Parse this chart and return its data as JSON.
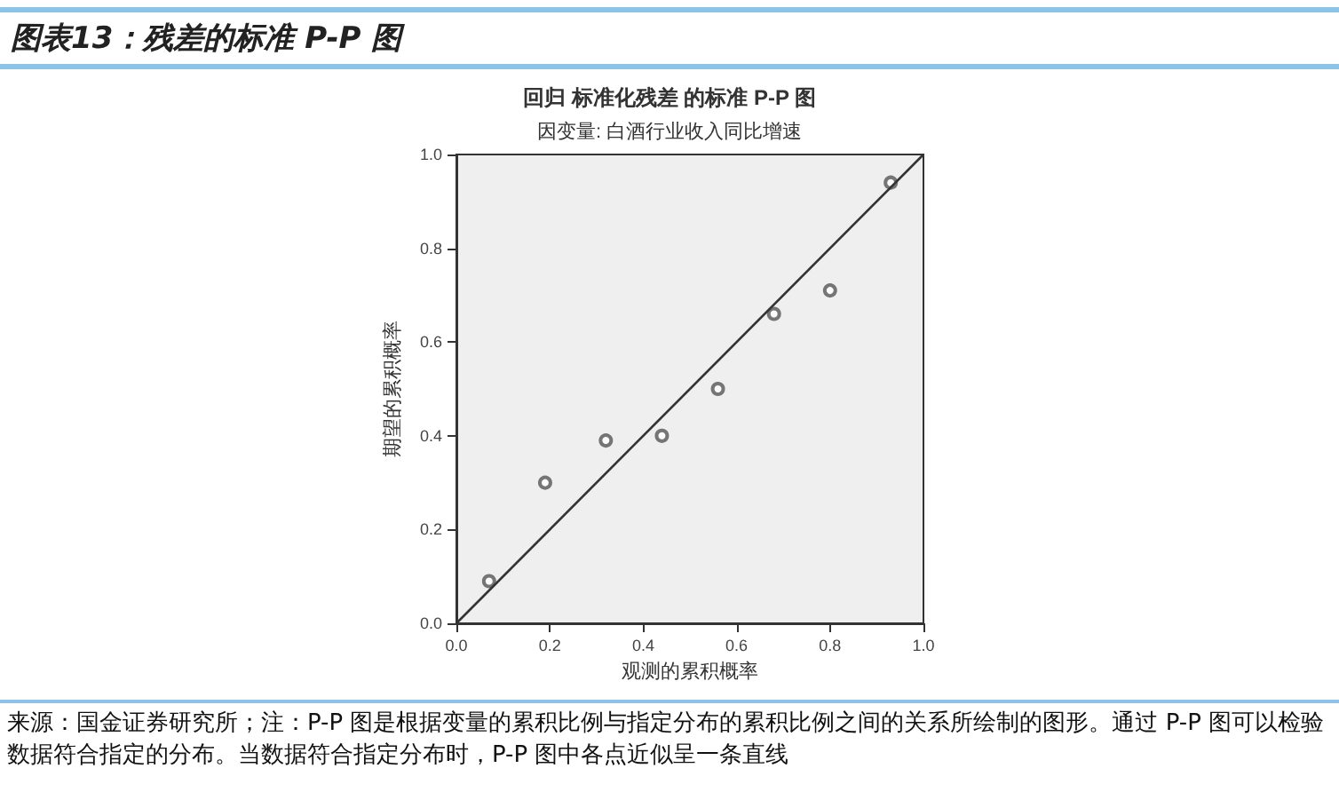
{
  "chart_data": {
    "type": "scatter",
    "title": "回归 标准化残差 的标准 P-P 图",
    "subtitle": "因变量: 白酒行业收入同比增速",
    "xlabel": "观测的累积概率",
    "ylabel": "期望的累积概率",
    "annotations": [
      "图表13：残差的标准 P-P 图",
      "来源：国金证券研究所；注：P-P 图是根据变量的累积比例与指定分布的累积比例之间的关系所绘制的图形。通过 P-P 图可以检验数据符合指定的分布。当数据符合指定分布时，P-P 图中各点近似呈一条直线"
    ],
    "xlim": [
      0,
      1
    ],
    "ylim": [
      0,
      1
    ],
    "xticks": [
      {
        "value": 0,
        "label": "0.0"
      },
      {
        "value": 0.2,
        "label": "0.2"
      },
      {
        "value": 0.4,
        "label": "0.4"
      },
      {
        "value": 0.6,
        "label": "0.6"
      },
      {
        "value": 0.8,
        "label": "0.8"
      },
      {
        "value": 1,
        "label": "1.0"
      }
    ],
    "yticks": [
      {
        "value": 0,
        "label": "0.0"
      },
      {
        "value": 0.2,
        "label": "0.2"
      },
      {
        "value": 0.4,
        "label": "0.4"
      },
      {
        "value": 0.6,
        "label": "0.6"
      },
      {
        "value": 0.8,
        "label": "0.8"
      },
      {
        "value": 1,
        "label": "1.0"
      }
    ],
    "marker": "circle",
    "series": [
      {
        "color": "#555555",
        "x": [
          0.07,
          0.19,
          0.32,
          0.44,
          0.56,
          0.68,
          0.8,
          0.93
        ],
        "values": [
          0.09,
          0.3,
          0.39,
          0.4,
          0.5,
          0.66,
          0.71,
          0.94
        ]
      },
      {
        "type": "line",
        "color": "#333333",
        "marker": "none",
        "x": [
          0,
          1
        ],
        "values": [
          0,
          1
        ]
      }
    ]
  }
}
